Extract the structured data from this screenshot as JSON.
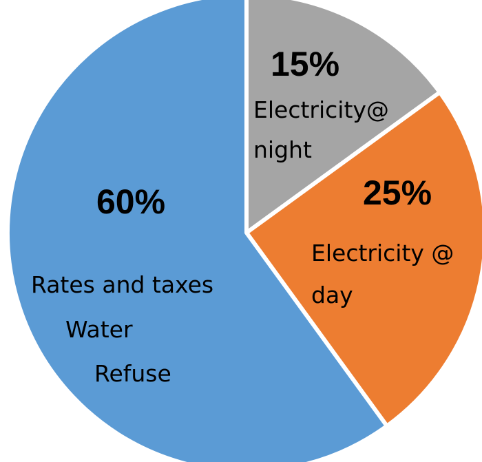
{
  "chart_data": {
    "type": "pie",
    "start_angle_deg": 0,
    "direction": "clockwise",
    "slices": [
      {
        "id": "electricity-night",
        "value": 15,
        "percent_label": "15%",
        "label_lines": [
          "Electricity@",
          "night"
        ],
        "color": "#a5a5a5"
      },
      {
        "id": "electricity-day",
        "value": 25,
        "percent_label": "25%",
        "label_lines": [
          "Electricity @",
          "day"
        ],
        "color": "#ed7d31"
      },
      {
        "id": "rates-water-refuse",
        "value": 60,
        "percent_label": "60%",
        "label_lines": [
          "Rates and taxes",
          "Water",
          "Refuse"
        ],
        "color": "#5b9bd5"
      }
    ]
  }
}
